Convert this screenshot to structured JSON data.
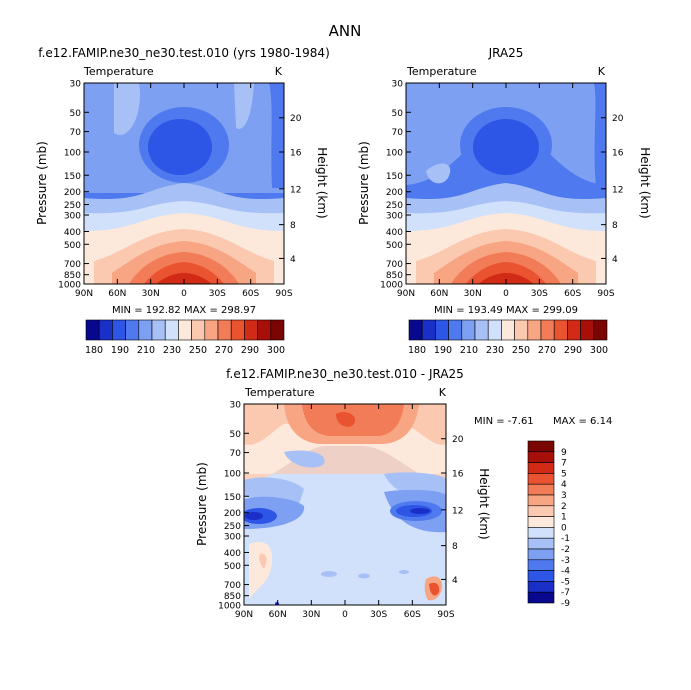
{
  "page_title": "ANN",
  "colors": {
    "frame": "#000000",
    "cbar_abs": [
      "#08088f",
      "#1a2fc8",
      "#2d55e6",
      "#4f79ee",
      "#7da0f2",
      "#a7c1f6",
      "#d1e0fb",
      "#fde8dc",
      "#fbc9b0",
      "#f7a583",
      "#f27b58",
      "#e9532f",
      "#d12a16",
      "#a80f08",
      "#7a0604"
    ],
    "cbar_diff": [
      "#7a0604",
      "#a80f08",
      "#d12a16",
      "#e9532f",
      "#f27b58",
      "#f7a583",
      "#fbc9b0",
      "#fde8dc",
      "#d1e0fb",
      "#a7c1f6",
      "#7da0f2",
      "#4f79ee",
      "#2d55e6",
      "#1a2fc8",
      "#08088f"
    ]
  },
  "chart_data": [
    {
      "type": "heatmap",
      "title": "f.e12.FAMIP.ne30_ne30.test.010 (yrs 1980-1984)",
      "subtitle": "Temperature",
      "units": "K",
      "ylabel": "Pressure (mb)",
      "y2label": "Height (km)",
      "x": [
        "90N",
        "60N",
        "30N",
        "0",
        "30S",
        "60S",
        "90S"
      ],
      "pressure_levels": [
        "30",
        "50",
        "70",
        "100",
        "150",
        "200",
        "250",
        "300",
        "400",
        "500",
        "700",
        "850",
        "1000"
      ],
      "height_levels": [
        "20",
        "16",
        "12",
        "8",
        "4"
      ],
      "stats_text": "MIN = 192.82   MAX = 298.97",
      "min": 192.82,
      "max": 298.97,
      "colorbar_labels": [
        "180",
        "190",
        "210",
        "230",
        "250",
        "270",
        "290",
        "300"
      ]
    },
    {
      "type": "heatmap",
      "title": "JRA25",
      "subtitle": "Temperature",
      "units": "K",
      "ylabel": "Pressure (mb)",
      "y2label": "Height (km)",
      "x": [
        "90N",
        "60N",
        "30N",
        "0",
        "30S",
        "60S",
        "90S"
      ],
      "pressure_levels": [
        "30",
        "50",
        "70",
        "100",
        "150",
        "200",
        "250",
        "300",
        "400",
        "500",
        "700",
        "850",
        "1000"
      ],
      "height_levels": [
        "20",
        "16",
        "12",
        "8",
        "4"
      ],
      "stats_text": "MIN = 193.49   MAX = 299.09",
      "min": 193.49,
      "max": 299.09,
      "colorbar_labels": [
        "180",
        "190",
        "210",
        "230",
        "250",
        "270",
        "290",
        "300"
      ]
    },
    {
      "type": "heatmap",
      "title": "f.e12.FAMIP.ne30_ne30.test.010 - JRA25",
      "subtitle": "Temperature",
      "units": "K",
      "ylabel": "Pressure (mb)",
      "y2label": "Height (km)",
      "x": [
        "90N",
        "60N",
        "30N",
        "0",
        "30S",
        "60S",
        "90S"
      ],
      "pressure_levels": [
        "30",
        "50",
        "70",
        "100",
        "150",
        "200",
        "250",
        "300",
        "400",
        "500",
        "700",
        "850",
        "1000"
      ],
      "height_levels": [
        "20",
        "16",
        "12",
        "8",
        "4"
      ],
      "min_text": "MIN =   -7.61",
      "max_text": "MAX =    6.14",
      "min": -7.61,
      "max": 6.14,
      "colorbar_labels": [
        "9",
        "7",
        "5",
        "4",
        "3",
        "2",
        "1",
        "0",
        "-1",
        "-2",
        "-3",
        "-4",
        "-5",
        "-7",
        "-9"
      ]
    }
  ]
}
